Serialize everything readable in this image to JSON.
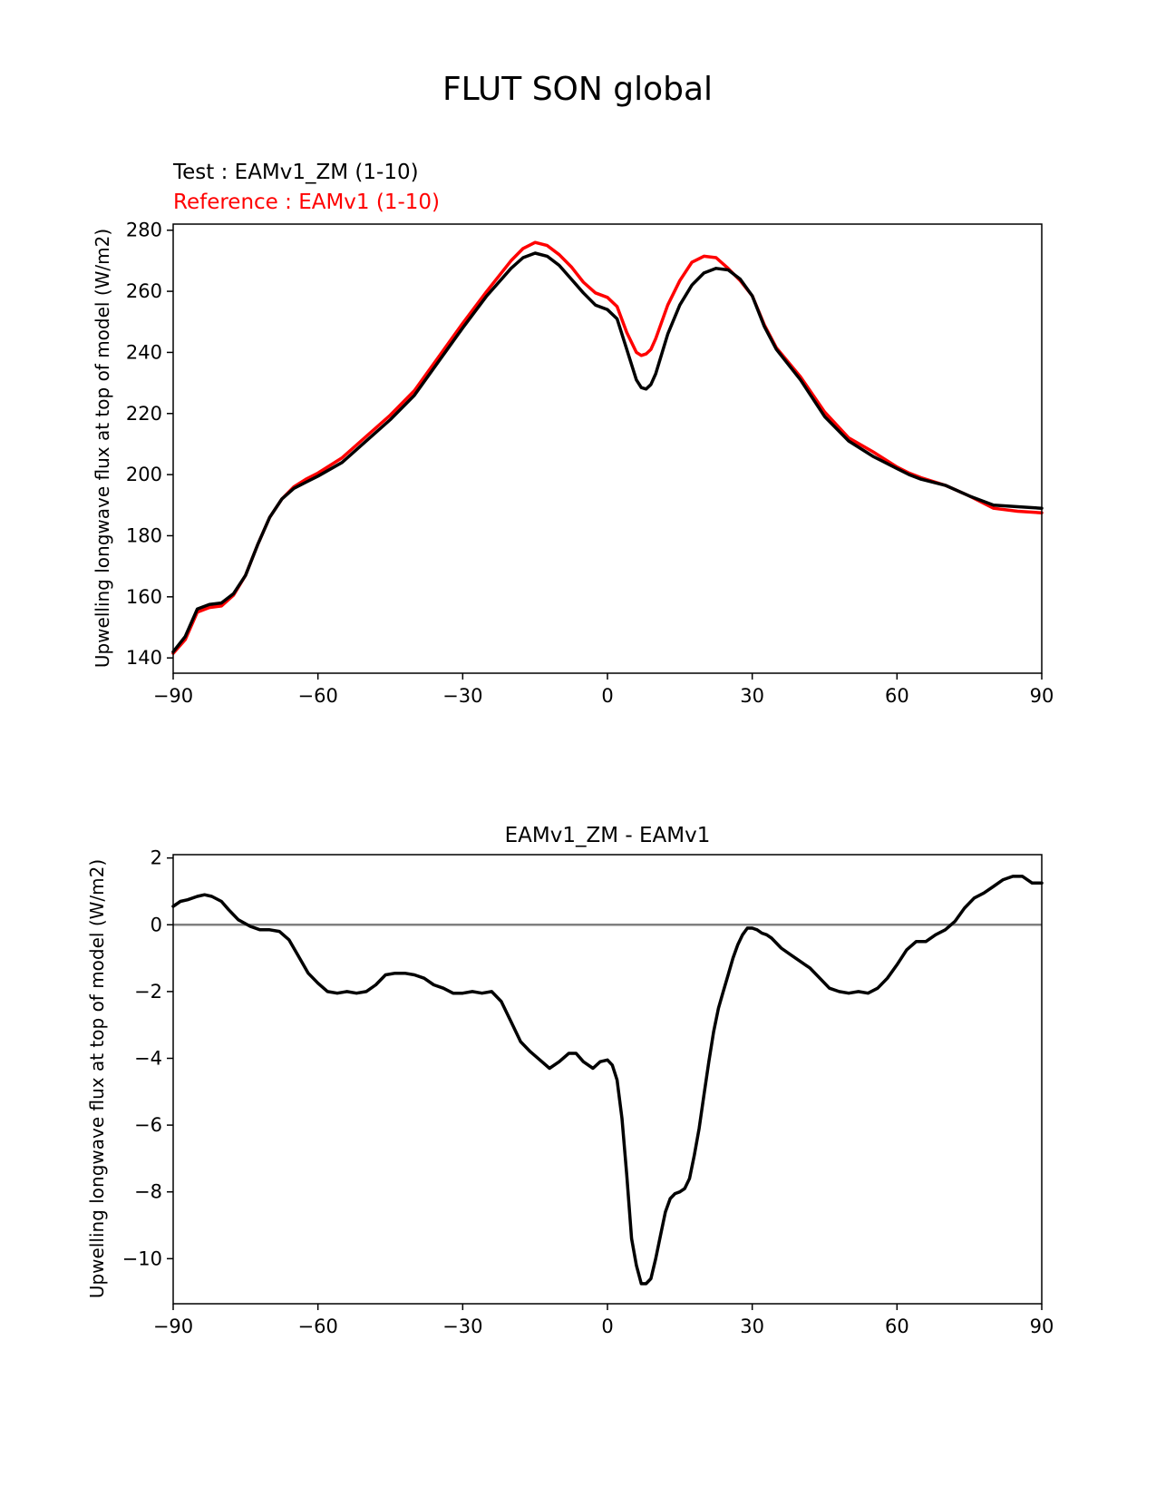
{
  "figure": {
    "title": "FLUT SON global"
  },
  "chart_data": [
    {
      "type": "line",
      "title": "",
      "subtitle_test": "Test : EAMv1_ZM (1-10)",
      "subtitle_ref": "Reference : EAMv1 (1-10)",
      "xlabel": "",
      "ylabel": "Upwelling longwave flux at top of model (W/m2)",
      "xlim": [
        -90,
        90
      ],
      "ylim": [
        135,
        282
      ],
      "xticks": [
        -90,
        -60,
        -30,
        0,
        30,
        60,
        90
      ],
      "xtick_labels": [
        "−90",
        "−60",
        "−30",
        "0",
        "30",
        "60",
        "90"
      ],
      "yticks": [
        140,
        160,
        180,
        200,
        220,
        240,
        260,
        280
      ],
      "ytick_labels": [
        "140",
        "160",
        "180",
        "200",
        "220",
        "240",
        "260",
        "280"
      ],
      "grid": false,
      "colors": {
        "test": "#000000",
        "reference": "#ff0000"
      },
      "series": [
        {
          "name": "Test : EAMv1_ZM (1-10)",
          "color": "#000000",
          "x": [
            -90,
            -87.5,
            -85,
            -82.5,
            -80,
            -77.5,
            -75,
            -72.5,
            -70,
            -67.5,
            -65,
            -62.5,
            -60,
            -55,
            -50,
            -45,
            -40,
            -35,
            -30,
            -25,
            -20,
            -17.5,
            -15,
            -12.5,
            -10,
            -7.5,
            -5,
            -2.5,
            0,
            2,
            4,
            6,
            7,
            8,
            9,
            10,
            12.5,
            15,
            17.5,
            20,
            22.5,
            25,
            27.5,
            30,
            32.5,
            35,
            40,
            45,
            50,
            55,
            60,
            62.5,
            65,
            70,
            75,
            80,
            85,
            90
          ],
          "values": [
            142,
            147,
            156,
            157.5,
            158,
            161,
            167,
            177,
            186,
            192,
            195.5,
            197.5,
            199.5,
            204,
            211,
            218,
            226,
            237,
            248,
            258.5,
            267.5,
            271,
            272.5,
            271.5,
            268.5,
            264,
            259.5,
            255.5,
            254,
            251,
            241,
            231,
            228.5,
            228,
            229.5,
            233,
            246,
            255.5,
            262,
            266,
            267.5,
            267,
            264,
            258.5,
            248.5,
            241,
            231,
            219,
            211,
            206,
            202,
            200,
            198.5,
            196.5,
            193,
            190,
            189.5,
            189
          ]
        },
        {
          "name": "Reference : EAMv1 (1-10)",
          "color": "#ff0000",
          "x": [
            -90,
            -87.5,
            -85,
            -82.5,
            -80,
            -77.5,
            -75,
            -72.5,
            -70,
            -67.5,
            -65,
            -62.5,
            -60,
            -55,
            -50,
            -45,
            -40,
            -35,
            -30,
            -25,
            -20,
            -17.5,
            -15,
            -12.5,
            -10,
            -7.5,
            -5,
            -2.5,
            0,
            2,
            4,
            6,
            7,
            8,
            9,
            10,
            12.5,
            15,
            17.5,
            20,
            22.5,
            25,
            27.5,
            30,
            32.5,
            35,
            40,
            45,
            50,
            55,
            60,
            62.5,
            65,
            70,
            75,
            80,
            85,
            90
          ],
          "values": [
            141.5,
            146,
            155,
            156.5,
            157,
            160.5,
            167,
            177,
            186,
            192,
            196,
            198.5,
            200.5,
            205.5,
            212.5,
            219.5,
            227.5,
            238.5,
            249.5,
            260,
            270,
            274,
            276,
            275,
            272,
            268,
            263,
            259.5,
            258,
            255,
            246.5,
            240,
            239,
            239.5,
            241,
            244.5,
            255.5,
            263.5,
            269.5,
            271.5,
            271,
            267.5,
            263.5,
            258.5,
            249,
            241.5,
            232,
            220.5,
            212,
            207.5,
            202.5,
            200.5,
            199,
            196.5,
            193,
            189,
            188,
            187.5
          ]
        }
      ]
    },
    {
      "type": "line",
      "title": "EAMv1_ZM - EAMv1",
      "xlabel": "",
      "ylabel": "Upwelling longwave flux at top of model (W/m2)",
      "xlim": [
        -90,
        90
      ],
      "ylim": [
        -11.35,
        2.1
      ],
      "xticks": [
        -90,
        -60,
        -30,
        0,
        30,
        60,
        90
      ],
      "xtick_labels": [
        "−90",
        "−60",
        "−30",
        "0",
        "30",
        "60",
        "90"
      ],
      "yticks": [
        -10,
        -8,
        -6,
        -4,
        -2,
        0,
        2
      ],
      "ytick_labels": [
        "−10",
        "−8",
        "−6",
        "−4",
        "−2",
        "0",
        "2"
      ],
      "grid": false,
      "zero_line_color": "#808080",
      "series": [
        {
          "name": "EAMv1_ZM - EAMv1",
          "color": "#000000",
          "x": [
            -90,
            -88.5,
            -87,
            -85,
            -83.5,
            -82,
            -80,
            -78.5,
            -76.5,
            -74,
            -72,
            -70,
            -68,
            -66,
            -64,
            -62,
            -60,
            -58,
            -56,
            -54,
            -52,
            -50,
            -48,
            -46,
            -44,
            -42,
            -40,
            -38,
            -36,
            -34,
            -32,
            -30,
            -28,
            -26,
            -24,
            -22,
            -20,
            -18,
            -16,
            -14,
            -12,
            -10,
            -8,
            -6.5,
            -5,
            -3,
            -1.5,
            0,
            1,
            2,
            3,
            4,
            5,
            6,
            7,
            8,
            9,
            10,
            11,
            12,
            13,
            14,
            15,
            16,
            17,
            18,
            19,
            20,
            21,
            22,
            23,
            24,
            25,
            26,
            27,
            28,
            29,
            30,
            31,
            32,
            33,
            34,
            35,
            36,
            38,
            40,
            42,
            44,
            46,
            48,
            50,
            52,
            54,
            56,
            58,
            60,
            62,
            64,
            66,
            68,
            70,
            72,
            74,
            76,
            78,
            80,
            82,
            84,
            86,
            88,
            90
          ],
          "values": [
            0.55,
            0.7,
            0.75,
            0.85,
            0.9,
            0.85,
            0.7,
            0.45,
            0.15,
            -0.05,
            -0.15,
            -0.15,
            -0.2,
            -0.45,
            -0.95,
            -1.45,
            -1.75,
            -2.0,
            -2.05,
            -2.0,
            -2.05,
            -2.0,
            -1.8,
            -1.5,
            -1.45,
            -1.45,
            -1.5,
            -1.6,
            -1.8,
            -1.9,
            -2.05,
            -2.05,
            -2.0,
            -2.05,
            -2.0,
            -2.3,
            -2.9,
            -3.5,
            -3.8,
            -4.05,
            -4.3,
            -4.1,
            -3.85,
            -3.85,
            -4.1,
            -4.3,
            -4.1,
            -4.05,
            -4.2,
            -4.65,
            -5.8,
            -7.5,
            -9.4,
            -10.2,
            -10.75,
            -10.75,
            -10.6,
            -10.0,
            -9.3,
            -8.6,
            -8.2,
            -8.05,
            -8.0,
            -7.9,
            -7.6,
            -6.9,
            -6.1,
            -5.1,
            -4.1,
            -3.2,
            -2.5,
            -2.0,
            -1.5,
            -1.0,
            -0.6,
            -0.3,
            -0.1,
            -0.1,
            -0.15,
            -0.25,
            -0.3,
            -0.4,
            -0.55,
            -0.7,
            -0.9,
            -1.1,
            -1.3,
            -1.6,
            -1.9,
            -2.0,
            -2.05,
            -2.0,
            -2.05,
            -1.9,
            -1.6,
            -1.2,
            -0.75,
            -0.5,
            -0.5,
            -0.3,
            -0.15,
            0.1,
            0.5,
            0.8,
            0.95,
            1.15,
            1.35,
            1.45,
            1.45,
            1.25,
            1.25
          ]
        }
      ]
    }
  ]
}
